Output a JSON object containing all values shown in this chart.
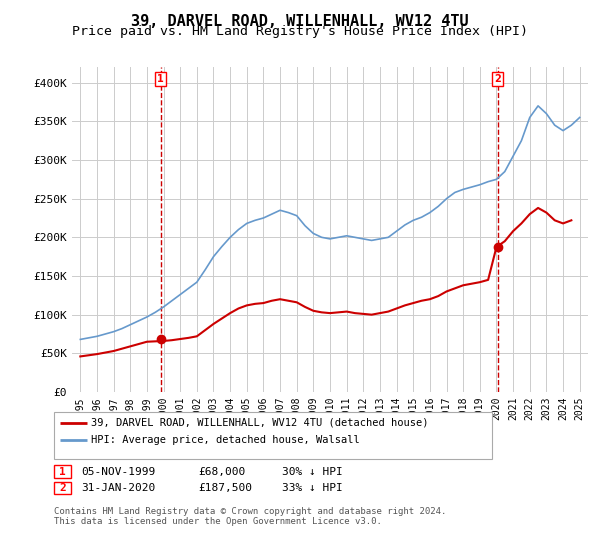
{
  "title": "39, DARVEL ROAD, WILLENHALL, WV12 4TU",
  "subtitle": "Price paid vs. HM Land Registry's House Price Index (HPI)",
  "title_fontsize": 11,
  "subtitle_fontsize": 9.5,
  "ylim": [
    0,
    420000
  ],
  "yticks": [
    0,
    50000,
    100000,
    150000,
    200000,
    250000,
    300000,
    350000,
    400000
  ],
  "ytick_labels": [
    "£0",
    "£50K",
    "£100K",
    "£150K",
    "£200K",
    "£250K",
    "£300K",
    "£350K",
    "£400K"
  ],
  "xlabel_years": [
    1995,
    1996,
    1997,
    1998,
    1999,
    2000,
    2001,
    2002,
    2003,
    2004,
    2005,
    2006,
    2007,
    2008,
    2009,
    2010,
    2011,
    2012,
    2013,
    2014,
    2015,
    2016,
    2017,
    2018,
    2019,
    2020,
    2021,
    2022,
    2023,
    2024,
    2025
  ],
  "hpi_years": [
    1995,
    1995.5,
    1996,
    1996.5,
    1997,
    1997.5,
    1998,
    1998.5,
    1999,
    1999.5,
    2000,
    2000.5,
    2001,
    2001.5,
    2002,
    2002.5,
    2003,
    2003.5,
    2004,
    2004.5,
    2005,
    2005.5,
    2006,
    2006.5,
    2007,
    2007.5,
    2008,
    2008.5,
    2009,
    2009.5,
    2010,
    2010.5,
    2011,
    2011.5,
    2012,
    2012.5,
    2013,
    2013.5,
    2014,
    2014.5,
    2015,
    2015.5,
    2016,
    2016.5,
    2017,
    2017.5,
    2018,
    2018.5,
    2019,
    2019.5,
    2020,
    2020.5,
    2021,
    2021.5,
    2022,
    2022.5,
    2023,
    2023.5,
    2024,
    2024.5,
    2025
  ],
  "hpi_values": [
    68000,
    70000,
    72000,
    75000,
    78000,
    82000,
    87000,
    92000,
    97000,
    103000,
    110000,
    118000,
    126000,
    134000,
    142000,
    158000,
    175000,
    188000,
    200000,
    210000,
    218000,
    222000,
    225000,
    230000,
    235000,
    232000,
    228000,
    215000,
    205000,
    200000,
    198000,
    200000,
    202000,
    200000,
    198000,
    196000,
    198000,
    200000,
    208000,
    216000,
    222000,
    226000,
    232000,
    240000,
    250000,
    258000,
    262000,
    265000,
    268000,
    272000,
    275000,
    285000,
    305000,
    325000,
    355000,
    370000,
    360000,
    345000,
    338000,
    345000,
    355000
  ],
  "property_years": [
    1995,
    1995.5,
    1996,
    1996.5,
    1997,
    1997.5,
    1998,
    1998.5,
    1999,
    1999.5,
    2000,
    2000.5,
    2001,
    2001.5,
    2002,
    2002.5,
    2003,
    2003.5,
    2004,
    2004.5,
    2005,
    2005.5,
    2006,
    2006.5,
    2007,
    2007.5,
    2008,
    2008.5,
    2009,
    2009.5,
    2010,
    2010.5,
    2011,
    2011.5,
    2012,
    2012.5,
    2013,
    2013.5,
    2014,
    2014.5,
    2015,
    2015.5,
    2016,
    2016.5,
    2017,
    2017.5,
    2018,
    2018.5,
    2019,
    2019.5,
    2020,
    2020.5,
    2021,
    2021.5,
    2022,
    2022.5,
    2023,
    2023.5,
    2024,
    2024.5
  ],
  "property_values": [
    46000,
    47500,
    49000,
    51000,
    53000,
    56000,
    59000,
    62000,
    65000,
    65500,
    66000,
    67000,
    68500,
    70000,
    72000,
    80000,
    88000,
    95000,
    102000,
    108000,
    112000,
    114000,
    115000,
    118000,
    120000,
    118000,
    116000,
    110000,
    105000,
    103000,
    102000,
    103000,
    104000,
    102000,
    101000,
    100000,
    102000,
    104000,
    108000,
    112000,
    115000,
    118000,
    120000,
    124000,
    130000,
    134000,
    138000,
    140000,
    142000,
    145000,
    187500,
    195000,
    208000,
    218000,
    230000,
    238000,
    232000,
    222000,
    218000,
    222000
  ],
  "purchase1_year": 1999.83,
  "purchase1_price": 68000,
  "purchase2_year": 2020.08,
  "purchase2_price": 187500,
  "line_color_property": "#cc0000",
  "line_color_hpi": "#6699cc",
  "marker_color": "#cc0000",
  "grid_color": "#cccccc",
  "bg_color": "#ffffff",
  "legend_label_property": "39, DARVEL ROAD, WILLENHALL, WV12 4TU (detached house)",
  "legend_label_hpi": "HPI: Average price, detached house, Walsall",
  "annotation1_label": "1",
  "annotation2_label": "2",
  "table_row1": [
    "1",
    "05-NOV-1999",
    "£68,000",
    "30% ↓ HPI"
  ],
  "table_row2": [
    "2",
    "31-JAN-2020",
    "£187,500",
    "33% ↓ HPI"
  ],
  "footer_text": "Contains HM Land Registry data © Crown copyright and database right 2024.\nThis data is licensed under the Open Government Licence v3.0.",
  "xlim": [
    1994.5,
    2025.5
  ]
}
